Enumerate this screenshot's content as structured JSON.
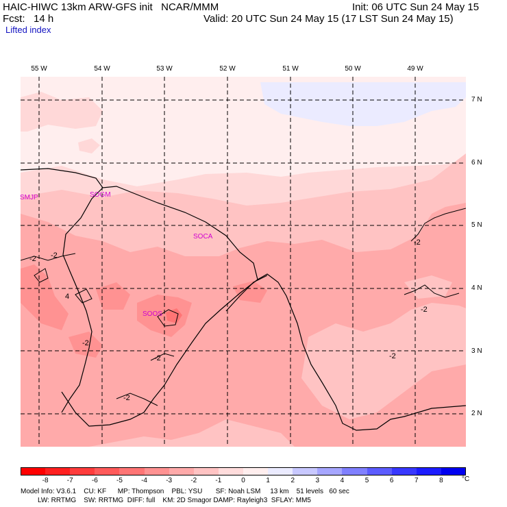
{
  "header": {
    "left_line1": "HAIC-HIWC 13km ARW-GFS init   NCAR/MMM",
    "left_line2": "Fcst:   14 h",
    "right_line1": "Init: 06 UTC Sun 24 May 15",
    "right_line2": "Valid: 20 UTC Sun 24 May 15 (17 LST Sun 24 May 15)",
    "field": "Lifted index"
  },
  "map": {
    "lon_labels": [
      "55 W",
      "54 W",
      "53 W",
      "52 W",
      "51 W",
      "50 W",
      "49 W"
    ],
    "lat_labels": [
      "7 N",
      "6 N",
      "5 N",
      "4 N",
      "3 N",
      "2 N"
    ],
    "stations": [
      "SMJP",
      "SOGM",
      "SOCA",
      "SOOS"
    ],
    "contour_labels": [
      "-2",
      "-2",
      "4",
      "-2",
      "-2",
      "-2",
      "-2",
      "-2",
      "-2"
    ],
    "colors": {
      "very_light_blue": "#ebebff",
      "pale": "#ffeeee",
      "light_pink": "#ffd8d8",
      "pink": "#ffc3c3",
      "medium_pink": "#ffaaaa",
      "salmon": "#ff9292",
      "station": "#d000d0"
    }
  },
  "colorbar": {
    "ticks": [
      "-8",
      "-7",
      "-6",
      "-5",
      "-4",
      "-3",
      "-2",
      "-1",
      "0",
      "1",
      "2",
      "3",
      "4",
      "5",
      "6",
      "7",
      "8"
    ],
    "unit": "°C",
    "colors": [
      "#ff0000",
      "#ff2020",
      "#ff3c3c",
      "#ff5a5a",
      "#ff7575",
      "#ff9292",
      "#ffaaaa",
      "#ffc3c3",
      "#ffdcdc",
      "#ffeeee",
      "#ebebff",
      "#c8c8ff",
      "#a6a6ff",
      "#8080ff",
      "#5c5cff",
      "#3838ff",
      "#1c1cff",
      "#0000f0"
    ]
  },
  "footer": {
    "line1": "Model Info: V3.6.1    CU: KF      MP: Thompson    PBL: YSU       SF: Noah LSM     13 km    51 levels   60 sec",
    "line2": "         LW: RRTMG    SW: RRTMG  DIFF: full    KM: 2D Smagor DAMP: Rayleigh3  SFLAY: MM5"
  }
}
